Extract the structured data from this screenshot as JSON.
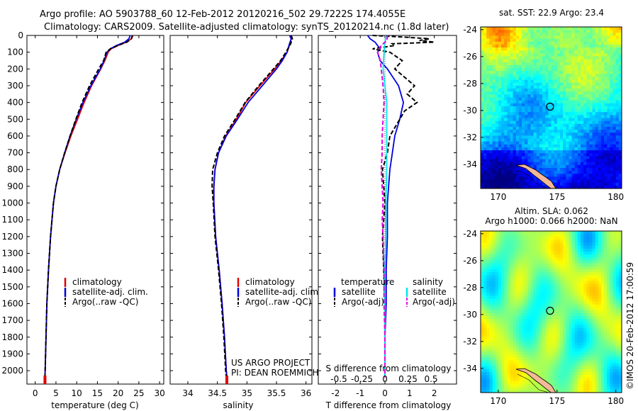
{
  "title_line1": "Argo profile: AO 5903788_60 12-Feb-2012 20120216_502 29.7222S 174.4055E",
  "title_line2": "Climatology: CARS2009. Satellite-adjusted climatology: synTS_20120214.nc (1.8d later)",
  "colors": {
    "climatology": "#e00000",
    "satellite": "#0000e0",
    "argo": "#000000",
    "sal_satellite": "#00e5ee",
    "sal_argo": "#e000e0"
  },
  "chart_data": [
    {
      "type": "line",
      "name": "temperature-panel",
      "xlabel": "temperature (deg C)",
      "xlim": [
        -2,
        31
      ],
      "xticks": [
        "0",
        "5",
        "10",
        "15",
        "20",
        "25",
        "30"
      ],
      "ylim": [
        0,
        2080
      ],
      "yticks": [
        "0",
        "100",
        "200",
        "300",
        "400",
        "500",
        "600",
        "700",
        "800",
        "900",
        "1000",
        "1100",
        "1200",
        "1300",
        "1400",
        "1500",
        "1600",
        "1700",
        "1800",
        "1900",
        "2000"
      ],
      "legend": [
        "climatology",
        "satellite-adj. clim.",
        "Argo(..raw -QC)"
      ],
      "series": [
        {
          "name": "climatology",
          "style": "solid",
          "color": "#e00000",
          "depth": [
            0,
            20,
            40,
            60,
            80,
            100,
            150,
            200,
            300,
            400,
            500,
            600,
            700,
            800,
            900,
            1000,
            1200,
            1400,
            1600,
            1800,
            2000,
            2040
          ],
          "values": [
            23.6,
            23.2,
            22.0,
            20.0,
            18.3,
            17.6,
            16.8,
            15.8,
            13.6,
            11.8,
            10.2,
            8.6,
            7.2,
            5.9,
            5.0,
            4.4,
            3.7,
            3.2,
            2.8,
            2.6,
            2.4,
            2.35
          ]
        },
        {
          "name": "satellite-adj. clim.",
          "style": "solid",
          "color": "#0000e0",
          "depth": [
            0,
            20,
            40,
            60,
            80,
            100,
            150,
            200,
            300,
            400,
            500,
            600,
            700,
            800,
            900,
            1000,
            1200,
            1400,
            1600,
            1800,
            2000,
            2040
          ],
          "values": [
            22.9,
            22.6,
            21.6,
            19.6,
            18.1,
            17.3,
            16.6,
            15.7,
            13.4,
            11.5,
            9.9,
            8.4,
            7.1,
            5.9,
            5.0,
            4.4,
            3.7,
            3.2,
            2.8,
            2.6,
            2.4,
            2.35
          ]
        },
        {
          "name": "Argo(..raw -QC)",
          "style": "dashed",
          "color": "#000000",
          "depth": [
            0,
            20,
            40,
            60,
            80,
            100,
            150,
            200,
            300,
            400,
            500,
            600,
            700,
            800,
            900,
            1000,
            1200,
            1400,
            1600,
            1800,
            2000,
            2040
          ],
          "values": [
            23.4,
            23.2,
            22.1,
            19.9,
            18.1,
            17.1,
            16.5,
            15.3,
            13.1,
            11.3,
            9.8,
            8.4,
            7.1,
            5.9,
            5.0,
            4.4,
            3.7,
            3.2,
            2.8,
            2.6,
            2.4,
            2.35
          ]
        }
      ]
    },
    {
      "type": "line",
      "name": "salinity-panel",
      "xlabel": "salinity",
      "xlim": [
        33.7,
        36.1
      ],
      "xticks": [
        "34",
        "34.5",
        "35",
        "35.5",
        "36"
      ],
      "ylim": [
        0,
        2080
      ],
      "legend": [
        "climatology",
        "satellite-adj. clim.",
        "Argo(..raw -QC)"
      ],
      "annotation": [
        "US ARGO PROJECT",
        "PI: DEAN ROEMMICH"
      ],
      "series": [
        {
          "name": "climatology",
          "style": "solid",
          "color": "#e00000",
          "depth": [
            0,
            20,
            50,
            100,
            150,
            200,
            300,
            400,
            500,
            600,
            700,
            800,
            900,
            1000,
            1200,
            1400,
            1600,
            1800,
            2000,
            2040
          ],
          "values": [
            35.72,
            35.75,
            35.73,
            35.68,
            35.58,
            35.47,
            35.22,
            34.98,
            34.82,
            34.64,
            34.52,
            34.46,
            34.44,
            34.44,
            34.47,
            34.53,
            34.58,
            34.62,
            34.65,
            34.66
          ]
        },
        {
          "name": "satellite-adj. clim.",
          "style": "solid",
          "color": "#0000e0",
          "depth": [
            0,
            20,
            50,
            100,
            150,
            200,
            300,
            400,
            500,
            600,
            700,
            800,
            900,
            1000,
            1200,
            1400,
            1600,
            1800,
            2000,
            2040
          ],
          "values": [
            35.73,
            35.75,
            35.72,
            35.68,
            35.6,
            35.5,
            35.26,
            35.02,
            34.84,
            34.65,
            34.52,
            34.46,
            34.44,
            34.44,
            34.47,
            34.53,
            34.58,
            34.62,
            34.65,
            34.66
          ]
        },
        {
          "name": "Argo(..raw -QC)",
          "style": "dashed",
          "color": "#000000",
          "depth": [
            0,
            20,
            50,
            100,
            150,
            200,
            300,
            400,
            500,
            600,
            700,
            800,
            900,
            1000,
            1200,
            1400,
            1600,
            1800,
            2000,
            2040
          ],
          "values": [
            35.75,
            35.77,
            35.74,
            35.66,
            35.57,
            35.45,
            35.2,
            34.97,
            34.8,
            34.62,
            34.5,
            34.42,
            34.41,
            34.43,
            34.46,
            34.52,
            34.57,
            34.61,
            34.64,
            34.65
          ]
        }
      ]
    },
    {
      "type": "line",
      "name": "difference-panel",
      "xlabel": "T difference from climatology",
      "xlim": [
        -2.7,
        2.9
      ],
      "xticks": [
        "-2",
        "-1",
        "0",
        "1",
        "2"
      ],
      "top_axis_label": "S difference from climatology",
      "top_ticks": [
        "-0.5",
        "-0.25",
        "0",
        "0.25",
        "0.5"
      ],
      "legend_groups": [
        {
          "header": "temperature",
          "items": [
            "satellite",
            "Argo(-adj)"
          ]
        },
        {
          "header": "salinity",
          "items": [
            "satellite",
            "Argo(-adj)"
          ]
        }
      ],
      "series": [
        {
          "name": "temperature satellite",
          "style": "solid",
          "color": "#0000e0",
          "depth": [
            0,
            20,
            40,
            60,
            80,
            100,
            150,
            200,
            300,
            400,
            500,
            600,
            700,
            800,
            900,
            1000,
            1200,
            1400,
            1600,
            1800,
            2000,
            2040
          ],
          "values": [
            -0.7,
            -0.6,
            -0.4,
            -0.3,
            -0.2,
            -0.3,
            -0.2,
            0.1,
            0.55,
            0.75,
            0.6,
            0.4,
            0.3,
            0.2,
            0.15,
            0.1,
            0.1,
            0.05,
            0.05,
            0.0,
            0.0,
            0.0
          ]
        },
        {
          "name": "temperature Argo(-adj)",
          "style": "dashed",
          "color": "#000000",
          "depth": [
            0,
            10,
            20,
            30,
            40,
            50,
            60,
            80,
            100,
            150,
            200,
            250,
            300,
            350,
            400,
            450,
            500,
            600,
            700,
            800,
            900,
            1000,
            1200,
            1400,
            1600,
            1800,
            2000,
            2040
          ],
          "values": [
            -0.5,
            0.8,
            1.8,
            1.4,
            2.0,
            0.3,
            0.4,
            -0.5,
            0.2,
            0.7,
            0.4,
            0.8,
            1.2,
            0.9,
            1.3,
            0.8,
            0.6,
            0.2,
            0.1,
            -0.1,
            -0.05,
            0.0,
            -0.1,
            -0.05,
            0.0,
            0.0,
            0.0,
            0.0
          ]
        },
        {
          "name": "salinity satellite",
          "style": "solid",
          "color": "#00e5ee",
          "depth": [
            0,
            50,
            100,
            200,
            300,
            400,
            500,
            600,
            700,
            800,
            1000,
            1200,
            1400,
            1600,
            1800,
            2000,
            2040
          ],
          "values": [
            0.01,
            0.0,
            -0.01,
            -0.02,
            0.0,
            0.02,
            0.02,
            0.02,
            0.02,
            0.02,
            0.01,
            0.01,
            0.0,
            0.0,
            0.0,
            0.0,
            0.0
          ]
        },
        {
          "name": "salinity Argo(-adj)",
          "style": "dashed",
          "color": "#e000e0",
          "depth": [
            0,
            30,
            60,
            100,
            150,
            200,
            300,
            400,
            500,
            600,
            700,
            800,
            900,
            1000,
            1100,
            1200,
            1400,
            1600,
            1800,
            2000,
            2040
          ],
          "values": [
            0.03,
            0.02,
            -0.04,
            -0.08,
            -0.05,
            -0.04,
            -0.02,
            -0.01,
            -0.02,
            -0.03,
            -0.03,
            -0.04,
            -0.03,
            -0.02,
            -0.03,
            -0.02,
            -0.01,
            -0.01,
            0.0,
            0.0,
            0.0
          ]
        }
      ]
    },
    {
      "type": "heatmap",
      "name": "sst-map",
      "title": "sat. SST: 22.9 Argo: 23.4",
      "xlim": [
        168.5,
        180.5
      ],
      "ylim": [
        -35.8,
        -23.8
      ],
      "xticks": [
        "170",
        "175",
        "180"
      ],
      "yticks": [
        "-24",
        "-26",
        "-28",
        "-30",
        "-32",
        "-34"
      ],
      "marker": {
        "lon": 174.4055,
        "lat": -29.7222
      }
    },
    {
      "type": "heatmap",
      "name": "sla-map",
      "title_line1": "Altim. SLA: 0.062",
      "title_line2": "Argo h1000: 0.066 h2000: NaN",
      "xlim": [
        168.5,
        180.5
      ],
      "ylim": [
        -35.8,
        -23.8
      ],
      "xticks": [
        "170",
        "175",
        "180"
      ],
      "yticks": [
        "-24",
        "-26",
        "-28",
        "-30",
        "-32",
        "-34"
      ],
      "marker": {
        "lon": 174.4055,
        "lat": -29.7222
      }
    }
  ],
  "footer": "©IMOS 20-Feb-2012 17:00:59"
}
